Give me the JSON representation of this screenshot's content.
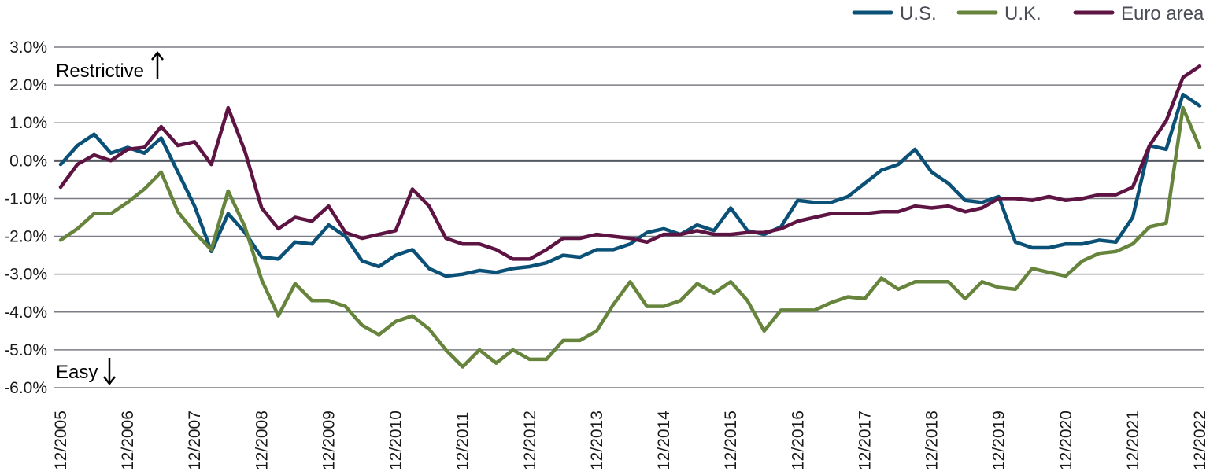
{
  "chart_data": {
    "type": "line",
    "title": "",
    "xlabel": "",
    "ylabel": "",
    "ylim": [
      -6.0,
      3.0
    ],
    "y_ticks": [
      "3.0%",
      "2.0%",
      "1.0%",
      "0.0%",
      "-1.0%",
      "-2.0%",
      "-3.0%",
      "-4.0%",
      "-5.0%",
      "-6.0%"
    ],
    "x_ticks": [
      "12/2005",
      "12/2006",
      "12/2007",
      "12/2008",
      "12/2009",
      "12/2010",
      "12/2011",
      "12/2012",
      "12/2013",
      "12/2014",
      "12/2015",
      "12/2016",
      "12/2017",
      "12/2018",
      "12/2019",
      "12/2020",
      "12/2021",
      "12/2022"
    ],
    "grid": true,
    "legend_position": "top-right",
    "annotations": {
      "top": "Restrictive",
      "bottom": "Easy"
    },
    "x": [
      "12/2005",
      "03/2006",
      "06/2006",
      "09/2006",
      "12/2006",
      "03/2007",
      "06/2007",
      "09/2007",
      "12/2007",
      "03/2008",
      "06/2008",
      "09/2008",
      "12/2008",
      "03/2009",
      "06/2009",
      "09/2009",
      "12/2009",
      "03/2010",
      "06/2010",
      "09/2010",
      "12/2010",
      "03/2011",
      "06/2011",
      "09/2011",
      "12/2011",
      "03/2012",
      "06/2012",
      "09/2012",
      "12/2012",
      "03/2013",
      "06/2013",
      "09/2013",
      "12/2013",
      "03/2014",
      "06/2014",
      "09/2014",
      "12/2014",
      "03/2015",
      "06/2015",
      "09/2015",
      "12/2015",
      "03/2016",
      "06/2016",
      "09/2016",
      "12/2016",
      "03/2017",
      "06/2017",
      "09/2017",
      "12/2017",
      "03/2018",
      "06/2018",
      "09/2018",
      "12/2018",
      "03/2019",
      "06/2019",
      "09/2019",
      "12/2019",
      "03/2020",
      "06/2020",
      "09/2020",
      "12/2020",
      "03/2021",
      "06/2021",
      "09/2021",
      "12/2021",
      "03/2022",
      "06/2022",
      "09/2022",
      "12/2022"
    ],
    "series": [
      {
        "name": "U.S.",
        "color": "#0b5177",
        "values": [
          -0.1,
          0.4,
          0.7,
          0.2,
          0.35,
          0.2,
          0.6,
          -0.3,
          -1.2,
          -2.4,
          -1.4,
          -1.9,
          -2.55,
          -2.6,
          -2.15,
          -2.2,
          -1.7,
          -2.0,
          -2.65,
          -2.8,
          -2.5,
          -2.35,
          -2.85,
          -3.05,
          -3.0,
          -2.9,
          -2.95,
          -2.85,
          -2.8,
          -2.7,
          -2.5,
          -2.55,
          -2.35,
          -2.35,
          -2.2,
          -1.9,
          -1.8,
          -1.95,
          -1.7,
          -1.85,
          -1.25,
          -1.85,
          -1.95,
          -1.75,
          -1.05,
          -1.1,
          -1.1,
          -0.95,
          -0.6,
          -0.25,
          -0.1,
          0.3,
          -0.3,
          -0.6,
          -1.05,
          -1.1,
          -0.95,
          -2.15,
          -2.3,
          -2.3,
          -2.2,
          -2.2,
          -2.1,
          -2.15,
          -1.5,
          0.4,
          0.3,
          1.75,
          1.45
        ]
      },
      {
        "name": "U.K.",
        "color": "#66843c",
        "values": [
          -2.1,
          -1.8,
          -1.4,
          -1.4,
          -1.1,
          -0.75,
          -0.3,
          -1.35,
          -1.9,
          -2.35,
          -0.8,
          -1.75,
          -3.15,
          -4.1,
          -3.25,
          -3.7,
          -3.7,
          -3.85,
          -4.35,
          -4.6,
          -4.25,
          -4.1,
          -4.45,
          -5.0,
          -5.45,
          -5.0,
          -5.35,
          -5.0,
          -5.25,
          -5.25,
          -4.75,
          -4.75,
          -4.5,
          -3.8,
          -3.2,
          -3.85,
          -3.85,
          -3.7,
          -3.25,
          -3.5,
          -3.2,
          -3.7,
          -4.5,
          -3.95,
          -3.95,
          -3.95,
          -3.75,
          -3.6,
          -3.65,
          -3.1,
          -3.4,
          -3.2,
          -3.2,
          -3.2,
          -3.65,
          -3.2,
          -3.35,
          -3.4,
          -2.85,
          -2.95,
          -3.05,
          -2.65,
          -2.45,
          -2.4,
          -2.2,
          -1.75,
          -1.65,
          1.4,
          0.35
        ]
      },
      {
        "name": "Euro area",
        "color": "#5e1443",
        "values": [
          -0.7,
          -0.1,
          0.15,
          0.0,
          0.3,
          0.35,
          0.9,
          0.4,
          0.5,
          -0.1,
          1.4,
          0.25,
          -1.25,
          -1.8,
          -1.5,
          -1.6,
          -1.2,
          -1.9,
          -2.05,
          -1.95,
          -1.85,
          -0.75,
          -1.2,
          -2.05,
          -2.2,
          -2.2,
          -2.35,
          -2.6,
          -2.6,
          -2.35,
          -2.05,
          -2.05,
          -1.95,
          -2.0,
          -2.05,
          -2.15,
          -1.95,
          -1.95,
          -1.85,
          -1.95,
          -1.95,
          -1.9,
          -1.9,
          -1.8,
          -1.6,
          -1.5,
          -1.4,
          -1.4,
          -1.4,
          -1.35,
          -1.35,
          -1.2,
          -1.25,
          -1.2,
          -1.35,
          -1.25,
          -1.0,
          -1.0,
          -1.05,
          -0.95,
          -1.05,
          -1.0,
          -0.9,
          -0.9,
          -0.7,
          0.4,
          1.05,
          2.2,
          2.5
        ]
      }
    ]
  }
}
